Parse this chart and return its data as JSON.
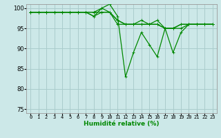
{
  "title": "",
  "xlabel": "Humidité relative (%)",
  "ylabel": "",
  "xlim": [
    -0.5,
    23.5
  ],
  "ylim": [
    74,
    101
  ],
  "yticks": [
    75,
    80,
    85,
    90,
    95,
    100
  ],
  "xticks": [
    0,
    1,
    2,
    3,
    4,
    5,
    6,
    7,
    8,
    9,
    10,
    11,
    12,
    13,
    14,
    15,
    16,
    17,
    18,
    19,
    20,
    21,
    22,
    23
  ],
  "bg_color": "#cce8e8",
  "grid_color": "#aacccc",
  "line_color": "#008800",
  "series": [
    [
      99,
      99,
      99,
      99,
      99,
      99,
      99,
      99,
      99,
      100,
      101,
      98,
      83,
      89,
      94,
      91,
      88,
      95,
      89,
      94,
      96,
      96,
      96,
      96
    ],
    [
      99,
      99,
      99,
      99,
      99,
      99,
      99,
      99,
      98,
      100,
      99,
      97,
      96,
      96,
      97,
      96,
      97,
      95,
      95,
      96,
      96,
      96,
      96,
      96
    ],
    [
      99,
      99,
      99,
      99,
      99,
      99,
      99,
      99,
      98,
      99,
      99,
      97,
      96,
      96,
      96,
      96,
      96,
      95,
      95,
      96,
      96,
      96,
      96,
      96
    ],
    [
      99,
      99,
      99,
      99,
      99,
      99,
      99,
      99,
      99,
      99,
      99,
      96,
      96,
      96,
      96,
      96,
      96,
      95,
      95,
      95,
      96,
      96,
      96,
      96
    ]
  ],
  "figsize": [
    3.2,
    2.0
  ],
  "dpi": 100,
  "xlabel_fontsize": 6.5,
  "ytick_fontsize": 6,
  "xtick_fontsize": 5
}
